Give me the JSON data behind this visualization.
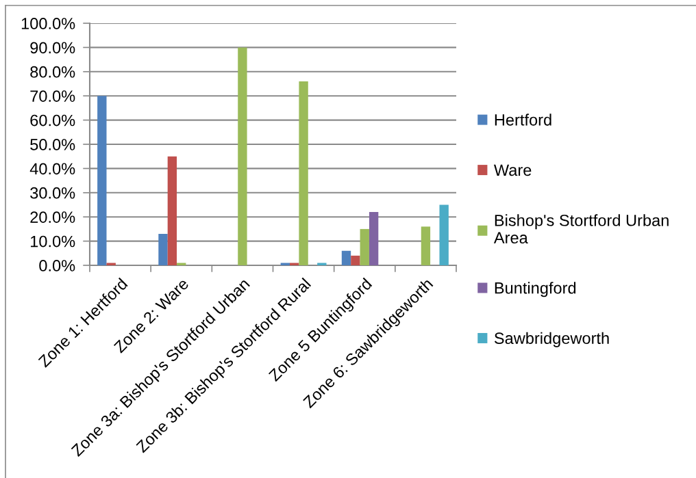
{
  "chart_data": {
    "type": "bar",
    "categories": [
      "Zone 1: Hertford",
      "Zone 2: Ware",
      "Zone 3a: Bishop's Stortford Urban",
      "Zone 3b: Bishop's Stortford Rural",
      "Zone 5 Buntingford",
      "Zone 6: Sawbridgeworth"
    ],
    "series": [
      {
        "name": "Hertford",
        "color": "#4f81bd",
        "values": [
          70,
          13,
          null,
          1,
          6,
          null
        ]
      },
      {
        "name": "Ware",
        "color": "#c0504d",
        "values": [
          1,
          45,
          null,
          1,
          4,
          null
        ]
      },
      {
        "name": "Bishop's Stortford Urban Area",
        "color": "#9bbb59",
        "values": [
          null,
          1,
          90,
          76,
          15,
          16
        ]
      },
      {
        "name": "Buntingford",
        "color": "#8064a2",
        "values": [
          null,
          null,
          null,
          null,
          22,
          null
        ]
      },
      {
        "name": "Sawbridgeworth",
        "color": "#4bacc6",
        "values": [
          null,
          null,
          null,
          1,
          null,
          25
        ]
      }
    ],
    "ylim": [
      0,
      100
    ],
    "yticks": [
      {
        "value": 0,
        "label": "0.0%"
      },
      {
        "value": 10,
        "label": "10.0%"
      },
      {
        "value": 20,
        "label": "20.0%"
      },
      {
        "value": 30,
        "label": "30.0%"
      },
      {
        "value": 40,
        "label": "40.0%"
      },
      {
        "value": 50,
        "label": "50.0%"
      },
      {
        "value": 60,
        "label": "60.0%"
      },
      {
        "value": 70,
        "label": "70.0%"
      },
      {
        "value": 80,
        "label": "80.0%"
      },
      {
        "value": 90,
        "label": "90.0%"
      },
      {
        "value": 100,
        "label": "100.0%"
      }
    ],
    "grid": "y",
    "legend": "right"
  }
}
